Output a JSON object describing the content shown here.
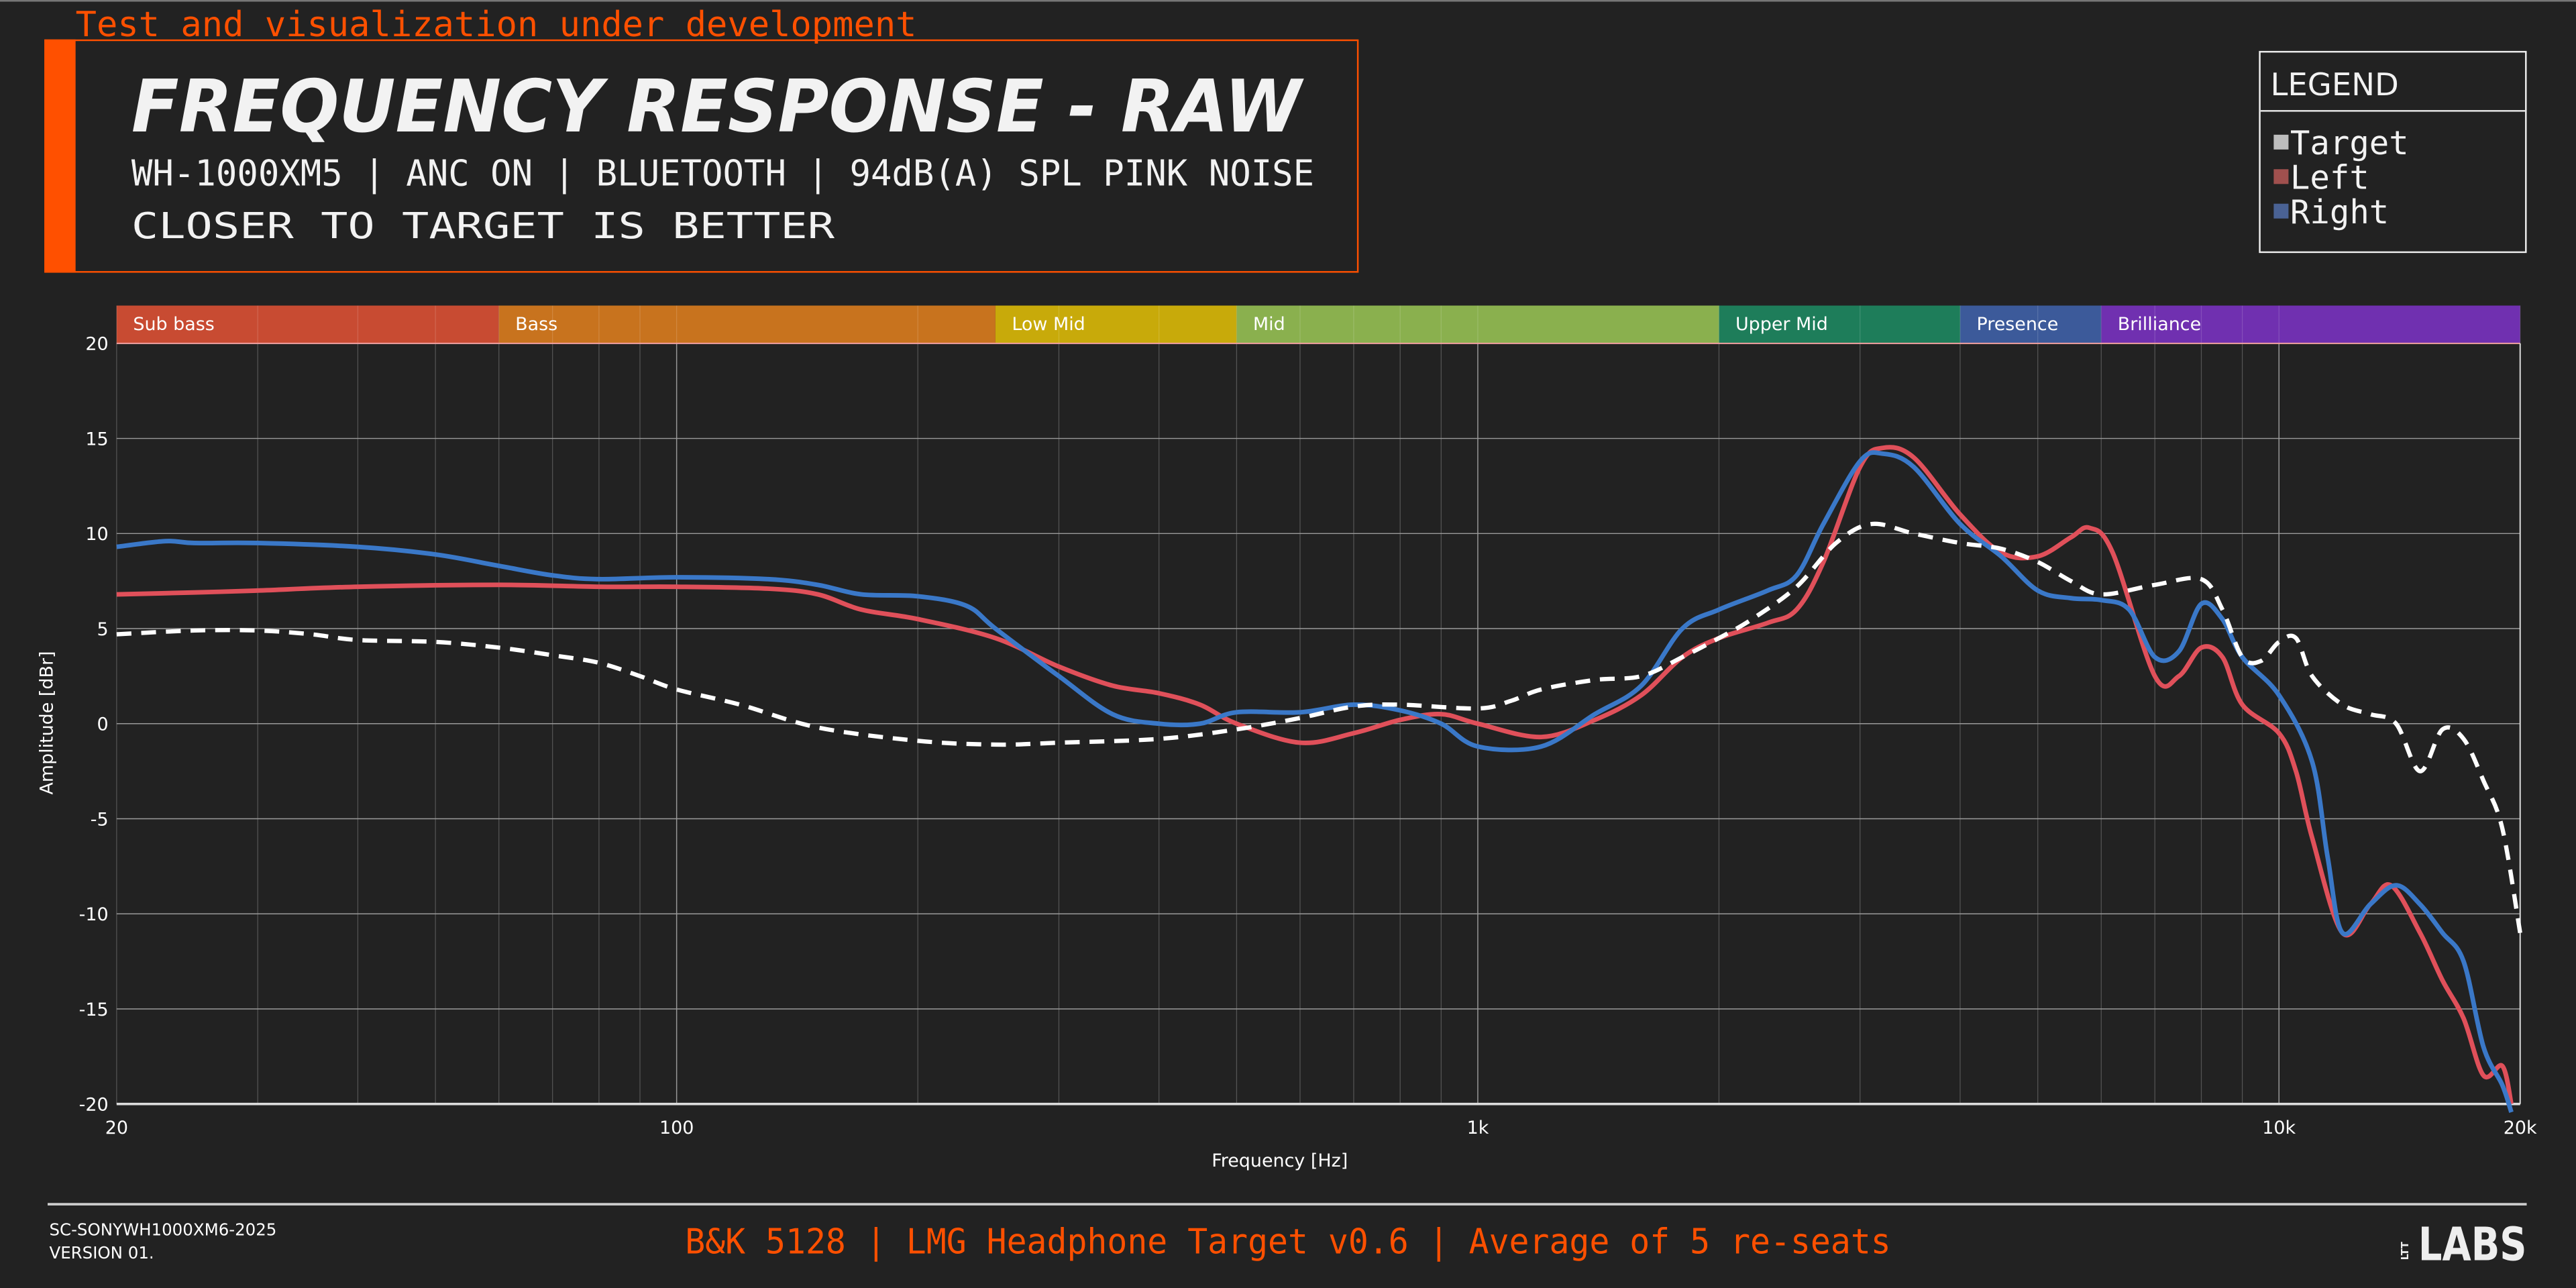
{
  "banner": "Test and visualization under development",
  "header": {
    "title": "FREQUENCY RESPONSE - RAW",
    "subtitle": "WH-1000XM5 | ANC ON | BLUETOOTH | 94dB(A) SPL PINK NOISE",
    "note": "CLOSER TO TARGET IS BETTER"
  },
  "legend": {
    "title": "LEGEND",
    "items": [
      {
        "label": "Target",
        "color": "#bdbdbd"
      },
      {
        "label": "Left",
        "color": "#a0504e"
      },
      {
        "label": "Right",
        "color": "#4a6294"
      }
    ]
  },
  "footer": {
    "id": "SC-SONYWH1000XM6-2025",
    "version": "VERSION 01.",
    "center": "B&K 5128 | LMG Headphone Target v0.6 | Average of 5 re-seats",
    "logo": "LTT LABS"
  },
  "colors": {
    "accent": "#ff5000",
    "left": "#e0505a",
    "right": "#3a78c8",
    "target": "#ffffff"
  },
  "chart_data": {
    "type": "line",
    "xlabel": "Frequency [Hz]",
    "ylabel": "Amplitude [dBr]",
    "xscale": "log",
    "xlim": [
      20,
      20000
    ],
    "ylim": [
      -20,
      20
    ],
    "grid": true,
    "legend_position": "top-right",
    "x_tick_labels": [
      {
        "value": 20,
        "label": "20"
      },
      {
        "value": 100,
        "label": "100"
      },
      {
        "value": 1000,
        "label": "1k"
      },
      {
        "value": 10000,
        "label": "10k"
      },
      {
        "value": 20000,
        "label": "20k"
      }
    ],
    "y_ticks": [
      20,
      15,
      10,
      5,
      0,
      -5,
      -10,
      -15,
      -20
    ],
    "bands": [
      {
        "name": "Sub bass",
        "from": 20,
        "to": 60,
        "color": "#c84b32"
      },
      {
        "name": "Bass",
        "from": 60,
        "to": 250,
        "color": "#c8731e"
      },
      {
        "name": "Low Mid",
        "from": 250,
        "to": 500,
        "color": "#c8aa0a"
      },
      {
        "name": "Mid",
        "from": 500,
        "to": 2000,
        "color": "#8ab04e"
      },
      {
        "name": "Upper Mid",
        "from": 2000,
        "to": 4000,
        "color": "#1e7d5a"
      },
      {
        "name": "Presence",
        "from": 4000,
        "to": 6000,
        "color": "#3c5a9a"
      },
      {
        "name": "Brilliance",
        "from": 6000,
        "to": 20000,
        "color": "#7030b0"
      }
    ],
    "series": [
      {
        "name": "Target",
        "style": "dashed",
        "color": "#ffffff",
        "points": [
          [
            20,
            4.7
          ],
          [
            25,
            4.9
          ],
          [
            30,
            4.9
          ],
          [
            35,
            4.7
          ],
          [
            40,
            4.4
          ],
          [
            50,
            4.3
          ],
          [
            60,
            4.0
          ],
          [
            70,
            3.6
          ],
          [
            80,
            3.2
          ],
          [
            90,
            2.5
          ],
          [
            100,
            1.8
          ],
          [
            120,
            1.0
          ],
          [
            150,
            -0.2
          ],
          [
            200,
            -0.9
          ],
          [
            250,
            -1.1
          ],
          [
            300,
            -1.0
          ],
          [
            400,
            -0.8
          ],
          [
            500,
            -0.3
          ],
          [
            600,
            0.3
          ],
          [
            700,
            0.9
          ],
          [
            800,
            1.0
          ],
          [
            1000,
            0.8
          ],
          [
            1100,
            1.2
          ],
          [
            1200,
            1.8
          ],
          [
            1400,
            2.3
          ],
          [
            1600,
            2.5
          ],
          [
            1800,
            3.5
          ],
          [
            2000,
            4.5
          ],
          [
            2200,
            5.5
          ],
          [
            2500,
            7.2
          ],
          [
            2800,
            9.5
          ],
          [
            3100,
            10.5
          ],
          [
            3500,
            10.0
          ],
          [
            4000,
            9.5
          ],
          [
            4500,
            9.2
          ],
          [
            5000,
            8.5
          ],
          [
            5500,
            7.5
          ],
          [
            6000,
            6.8
          ],
          [
            7000,
            7.3
          ],
          [
            8000,
            7.6
          ],
          [
            8500,
            6.0
          ],
          [
            9000,
            3.5
          ],
          [
            9500,
            3.3
          ],
          [
            10000,
            4.3
          ],
          [
            10500,
            4.5
          ],
          [
            11000,
            2.5
          ],
          [
            12000,
            1.0
          ],
          [
            13000,
            0.5
          ],
          [
            14000,
            0.0
          ],
          [
            15000,
            -2.5
          ],
          [
            16000,
            -0.3
          ],
          [
            17000,
            -0.8
          ],
          [
            18000,
            -3.0
          ],
          [
            19000,
            -5.5
          ],
          [
            20000,
            -11.0
          ]
        ]
      },
      {
        "name": "Left",
        "style": "solid",
        "color": "#e0505a",
        "points": [
          [
            20,
            6.8
          ],
          [
            25,
            6.9
          ],
          [
            30,
            7.0
          ],
          [
            40,
            7.2
          ],
          [
            60,
            7.3
          ],
          [
            80,
            7.2
          ],
          [
            100,
            7.2
          ],
          [
            130,
            7.1
          ],
          [
            150,
            6.8
          ],
          [
            170,
            6.0
          ],
          [
            200,
            5.5
          ],
          [
            250,
            4.5
          ],
          [
            300,
            3.0
          ],
          [
            350,
            2.0
          ],
          [
            400,
            1.6
          ],
          [
            450,
            1.0
          ],
          [
            500,
            0.0
          ],
          [
            600,
            -1.0
          ],
          [
            700,
            -0.5
          ],
          [
            800,
            0.2
          ],
          [
            900,
            0.5
          ],
          [
            1000,
            0.0
          ],
          [
            1200,
            -0.7
          ],
          [
            1400,
            0.2
          ],
          [
            1600,
            1.5
          ],
          [
            1800,
            3.5
          ],
          [
            2000,
            4.5
          ],
          [
            2300,
            5.3
          ],
          [
            2500,
            6.0
          ],
          [
            2700,
            8.5
          ],
          [
            3000,
            13.5
          ],
          [
            3200,
            14.5
          ],
          [
            3500,
            14.0
          ],
          [
            4000,
            11.0
          ],
          [
            4500,
            9.0
          ],
          [
            5000,
            8.8
          ],
          [
            5500,
            9.8
          ],
          [
            5800,
            10.3
          ],
          [
            6200,
            9.0
          ],
          [
            7000,
            2.5
          ],
          [
            7500,
            2.5
          ],
          [
            8000,
            4.0
          ],
          [
            8500,
            3.5
          ],
          [
            9000,
            1.0
          ],
          [
            10000,
            -0.5
          ],
          [
            10500,
            -2.5
          ],
          [
            11000,
            -6.0
          ],
          [
            12000,
            -11.0
          ],
          [
            13000,
            -9.5
          ],
          [
            13800,
            -8.5
          ],
          [
            15000,
            -11.0
          ],
          [
            16000,
            -13.5
          ],
          [
            17000,
            -15.5
          ],
          [
            18000,
            -18.5
          ],
          [
            19000,
            -18.0
          ],
          [
            19500,
            -20.0
          ]
        ]
      },
      {
        "name": "Right",
        "style": "solid",
        "color": "#3a78c8",
        "points": [
          [
            20,
            9.3
          ],
          [
            23,
            9.6
          ],
          [
            25,
            9.5
          ],
          [
            30,
            9.5
          ],
          [
            40,
            9.3
          ],
          [
            50,
            8.9
          ],
          [
            60,
            8.3
          ],
          [
            70,
            7.8
          ],
          [
            80,
            7.6
          ],
          [
            100,
            7.7
          ],
          [
            130,
            7.6
          ],
          [
            150,
            7.3
          ],
          [
            170,
            6.8
          ],
          [
            200,
            6.7
          ],
          [
            230,
            6.2
          ],
          [
            250,
            5.0
          ],
          [
            300,
            2.5
          ],
          [
            350,
            0.5
          ],
          [
            400,
            0.0
          ],
          [
            450,
            0.0
          ],
          [
            500,
            0.6
          ],
          [
            600,
            0.6
          ],
          [
            700,
            1.0
          ],
          [
            800,
            0.7
          ],
          [
            900,
            0.0
          ],
          [
            1000,
            -1.2
          ],
          [
            1200,
            -1.2
          ],
          [
            1400,
            0.5
          ],
          [
            1600,
            2.0
          ],
          [
            1800,
            5.0
          ],
          [
            2000,
            6.0
          ],
          [
            2300,
            7.0
          ],
          [
            2500,
            7.8
          ],
          [
            2700,
            10.5
          ],
          [
            3000,
            13.8
          ],
          [
            3200,
            14.2
          ],
          [
            3500,
            13.5
          ],
          [
            4000,
            10.5
          ],
          [
            4500,
            8.8
          ],
          [
            5000,
            7.0
          ],
          [
            5500,
            6.6
          ],
          [
            6000,
            6.5
          ],
          [
            6500,
            6.0
          ],
          [
            7000,
            3.5
          ],
          [
            7500,
            3.8
          ],
          [
            8000,
            6.3
          ],
          [
            8500,
            5.5
          ],
          [
            9000,
            3.5
          ],
          [
            10000,
            1.5
          ],
          [
            11000,
            -2.0
          ],
          [
            11500,
            -7.0
          ],
          [
            12000,
            -11.0
          ],
          [
            13000,
            -9.5
          ],
          [
            14000,
            -8.5
          ],
          [
            15000,
            -9.5
          ],
          [
            16000,
            -11.0
          ],
          [
            17000,
            -12.5
          ],
          [
            18000,
            -17.0
          ],
          [
            19000,
            -19.0
          ],
          [
            19500,
            -20.5
          ]
        ]
      }
    ]
  }
}
